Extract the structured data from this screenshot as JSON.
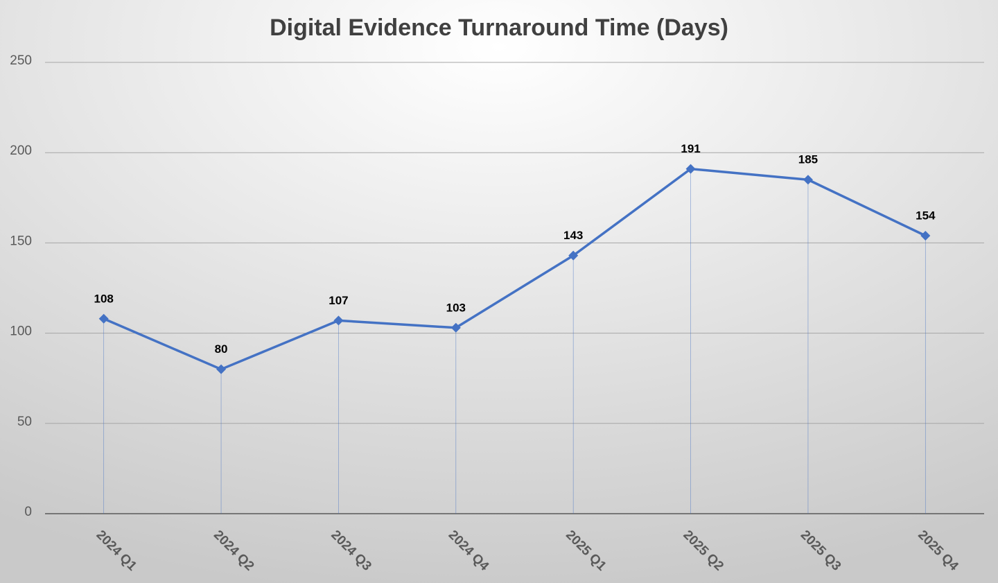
{
  "chart_data": {
    "type": "line",
    "title": "Digital Evidence Turnaround Time (Days)",
    "categories": [
      "2024 Q1",
      "2024 Q2",
      "2024 Q3",
      "2024 Q4",
      "2025 Q1",
      "2025 Q2",
      "2025 Q3",
      "2025 Q4"
    ],
    "values": [
      108,
      80,
      107,
      103,
      143,
      191,
      185,
      154
    ],
    "color": "#4472c4",
    "ylim": [
      0,
      250
    ],
    "yticks": [
      0,
      50,
      100,
      150,
      200,
      250
    ],
    "grid": true,
    "data_labels": true,
    "drop_lines": true
  }
}
